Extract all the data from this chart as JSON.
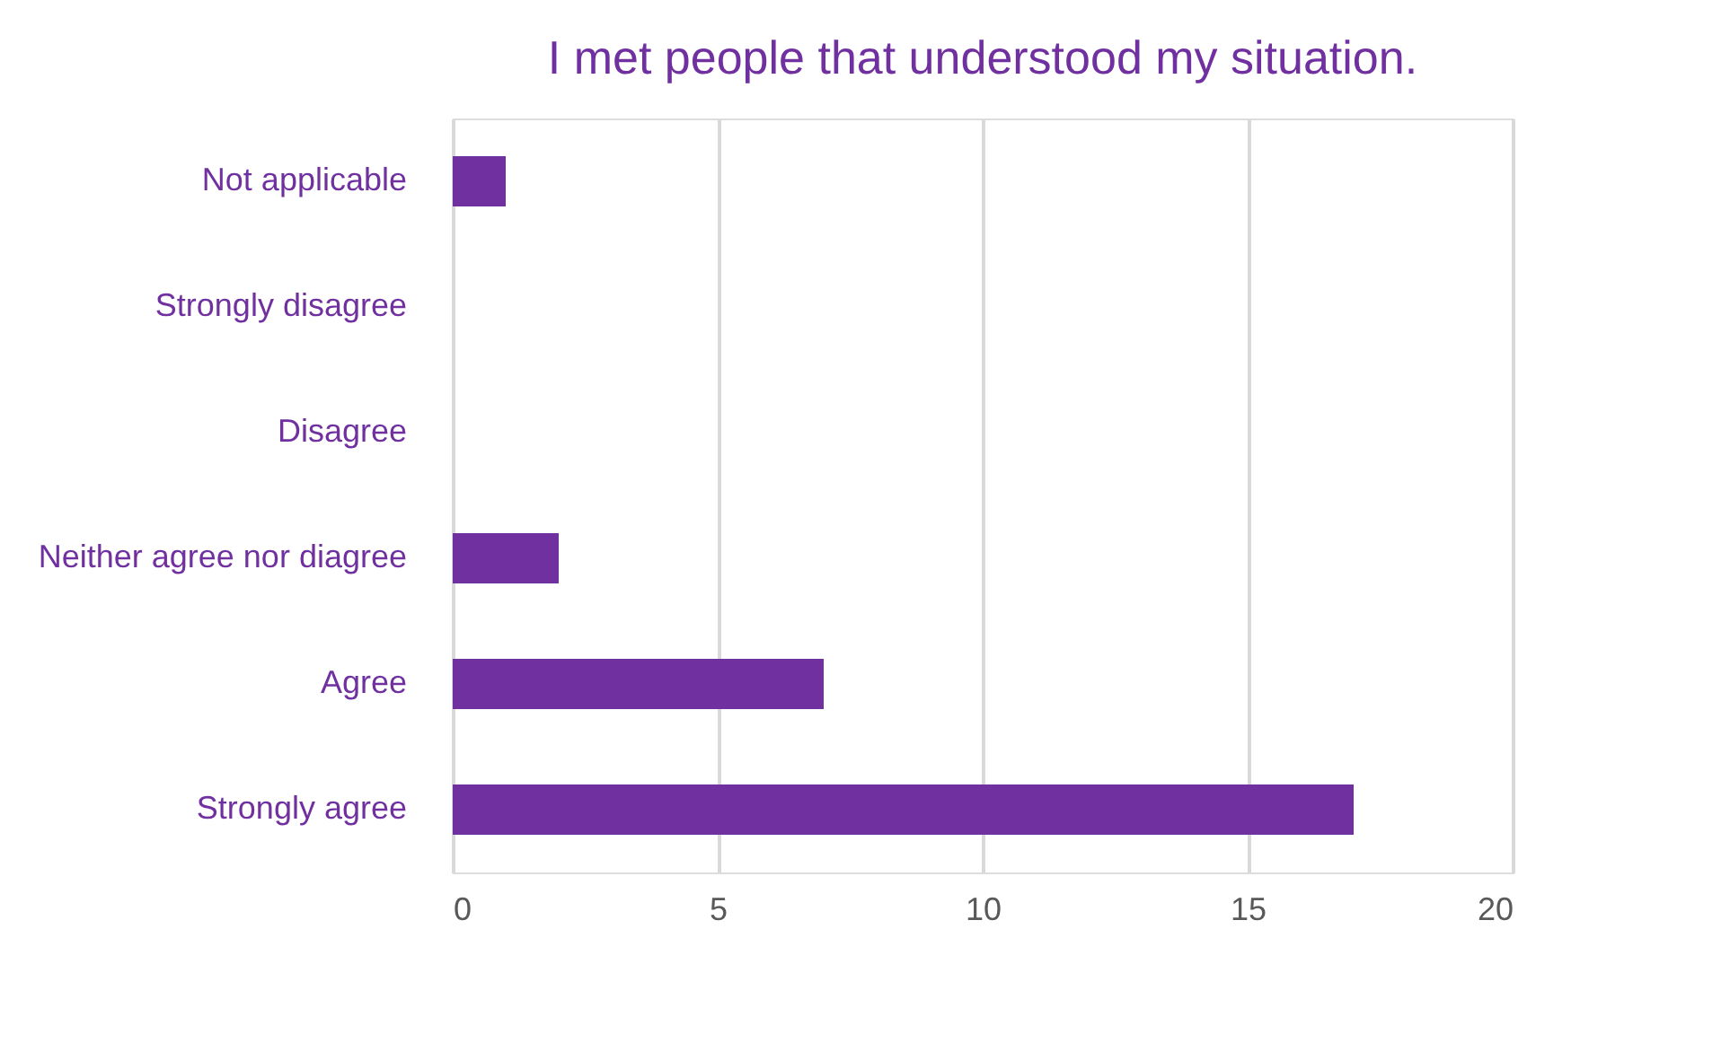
{
  "chart_data": {
    "type": "bar",
    "orientation": "horizontal",
    "title": "I met people that understood my situation.",
    "categories": [
      "Not applicable",
      "Strongly disagree",
      "Disagree",
      "Neither agree nor diagree",
      "Agree",
      "Strongly agree"
    ],
    "values": [
      1,
      0,
      0,
      2,
      7,
      17
    ],
    "color": "#7030a0",
    "xlim": [
      0,
      20
    ],
    "xticks": [
      0,
      5,
      10,
      15,
      20
    ],
    "grid": "x"
  }
}
